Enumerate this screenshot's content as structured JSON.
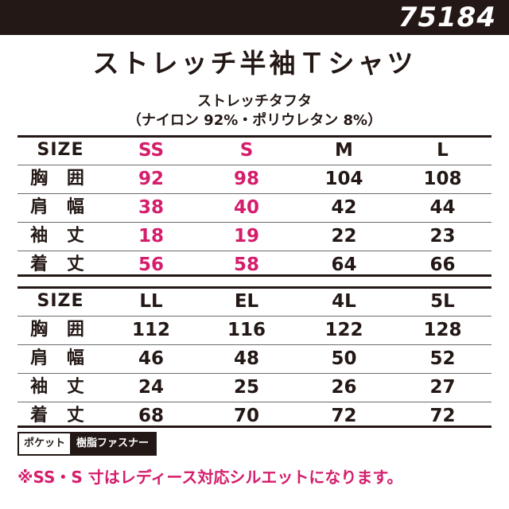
{
  "header": {
    "product_code": "75184"
  },
  "title": "ストレッチ半袖Ｔシャツ",
  "material": "ストレッチタフタ",
  "composition": "（ナイロン 92%・ポリウレタン 8%）",
  "tables": [
    {
      "header": {
        "label": "SIZE",
        "sizes": [
          "SS",
          "S",
          "M",
          "L"
        ]
      },
      "rows": [
        {
          "label": "胸 囲",
          "values": [
            "92",
            "98",
            "104",
            "108"
          ]
        },
        {
          "label": "肩 幅",
          "values": [
            "38",
            "40",
            "42",
            "44"
          ]
        },
        {
          "label": "袖 丈",
          "values": [
            "18",
            "19",
            "22",
            "23"
          ]
        },
        {
          "label": "着 丈",
          "values": [
            "56",
            "58",
            "64",
            "66"
          ]
        }
      ]
    },
    {
      "header": {
        "label": "SIZE",
        "sizes": [
          "LL",
          "EL",
          "4L",
          "5L"
        ]
      },
      "rows": [
        {
          "label": "胸 囲",
          "values": [
            "112",
            "116",
            "122",
            "128"
          ]
        },
        {
          "label": "肩 幅",
          "values": [
            "46",
            "48",
            "50",
            "52"
          ]
        },
        {
          "label": "袖 丈",
          "values": [
            "24",
            "25",
            "26",
            "27"
          ]
        },
        {
          "label": "着 丈",
          "values": [
            "68",
            "70",
            "72",
            "72"
          ]
        }
      ]
    }
  ],
  "pocket": {
    "label": "ポケット",
    "value": "樹脂ファスナー"
  },
  "note": "※SS・S 寸はレディース対応シルエットになります。",
  "colors": {
    "accent": "#d41d6b",
    "ink": "#231815",
    "background": "#ffffff"
  }
}
